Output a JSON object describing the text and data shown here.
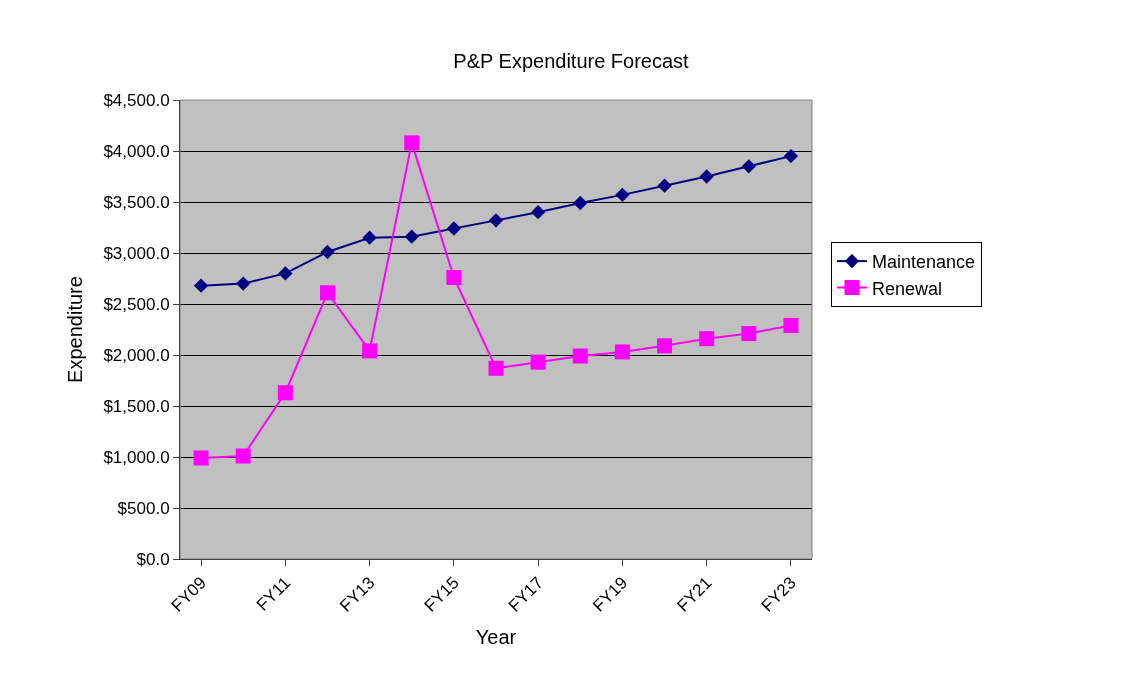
{
  "chart_data": {
    "type": "line",
    "title": "P&P Expenditure Forecast",
    "xlabel": "Year",
    "ylabel": "Expenditure",
    "categories": [
      "FY09",
      null,
      "FY11",
      null,
      "FY13",
      null,
      "FY15",
      null,
      "FY17",
      null,
      "FY19",
      null,
      "FY21",
      null,
      "FY23"
    ],
    "series": [
      {
        "name": "Maintenance",
        "color": "#000080",
        "marker": "diamond",
        "values": [
          2680,
          2700,
          2800,
          3010,
          3150,
          3160,
          3240,
          3320,
          3400,
          3490,
          3570,
          3660,
          3750,
          3850,
          3950
        ]
      },
      {
        "name": "Renewal",
        "color": "#ff00ff",
        "marker": "square",
        "values": [
          990,
          1010,
          1630,
          2610,
          2040,
          4080,
          2760,
          1870,
          1930,
          1990,
          2030,
          2090,
          2160,
          2210,
          2290
        ]
      }
    ],
    "ylim": [
      0,
      4500
    ],
    "yticks": [
      {
        "value": 0,
        "label": "$0.0"
      },
      {
        "value": 500,
        "label": "$500.0"
      },
      {
        "value": 1000,
        "label": "$1,000.0"
      },
      {
        "value": 1500,
        "label": "$1,500.0"
      },
      {
        "value": 2000,
        "label": "$2,000.0"
      },
      {
        "value": 2500,
        "label": "$2,500.0"
      },
      {
        "value": 3000,
        "label": "$3,000.0"
      },
      {
        "value": 3500,
        "label": "$3,500.0"
      },
      {
        "value": 4000,
        "label": "$4,000.0"
      },
      {
        "value": 4500,
        "label": "$4,500.0"
      }
    ],
    "grid": "y",
    "legend": "right",
    "line_style": "solid"
  }
}
